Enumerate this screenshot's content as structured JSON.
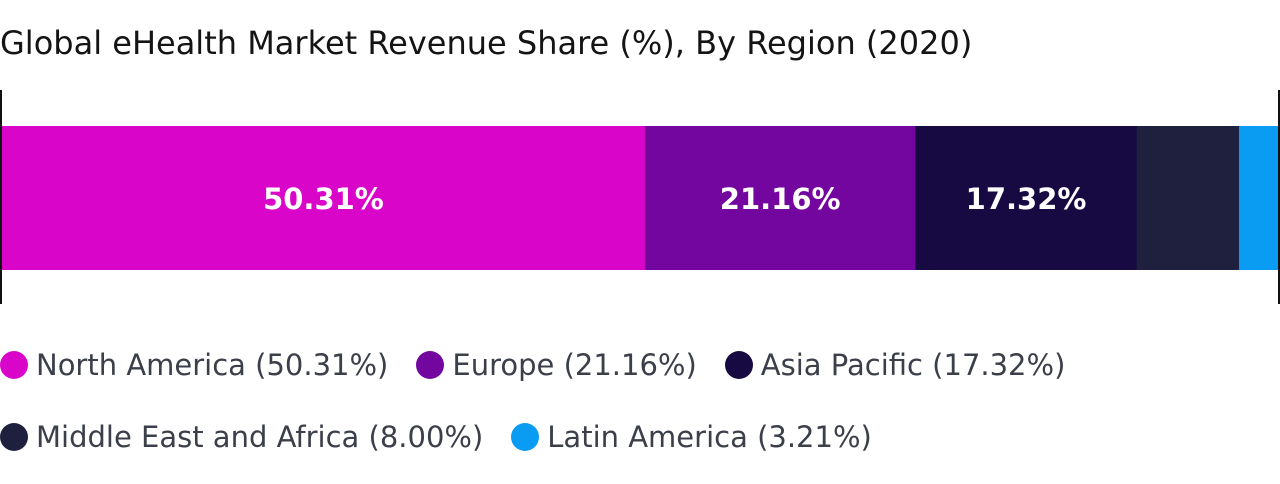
{
  "chart_data": {
    "type": "bar",
    "orientation": "horizontal-stacked-100",
    "title": "Global eHealth Market Revenue Share (%), By Region (2020)",
    "xlabel": "",
    "ylabel": "",
    "xlim": [
      0,
      100
    ],
    "grid": false,
    "legend_position": "bottom",
    "series": [
      {
        "name": "North America",
        "value": 50.31,
        "color": "#d906c9",
        "label": "50.31%",
        "legend": "North America (50.31%)"
      },
      {
        "name": "Europe",
        "value": 21.16,
        "color": "#7406a0",
        "label": "21.16%",
        "legend": "Europe (21.16%)"
      },
      {
        "name": "Asia Pacific",
        "value": 17.32,
        "color": "#170a42",
        "label": "17.32%",
        "legend": "Asia Pacific (17.32%)"
      },
      {
        "name": "Middle East and Africa",
        "value": 8.0,
        "color": "#1e203d",
        "label": "",
        "legend": "Middle East and Africa (8.00%)"
      },
      {
        "name": "Latin America",
        "value": 3.21,
        "color": "#0a9cf2",
        "label": "",
        "legend": "Latin America (3.21%)"
      }
    ]
  }
}
